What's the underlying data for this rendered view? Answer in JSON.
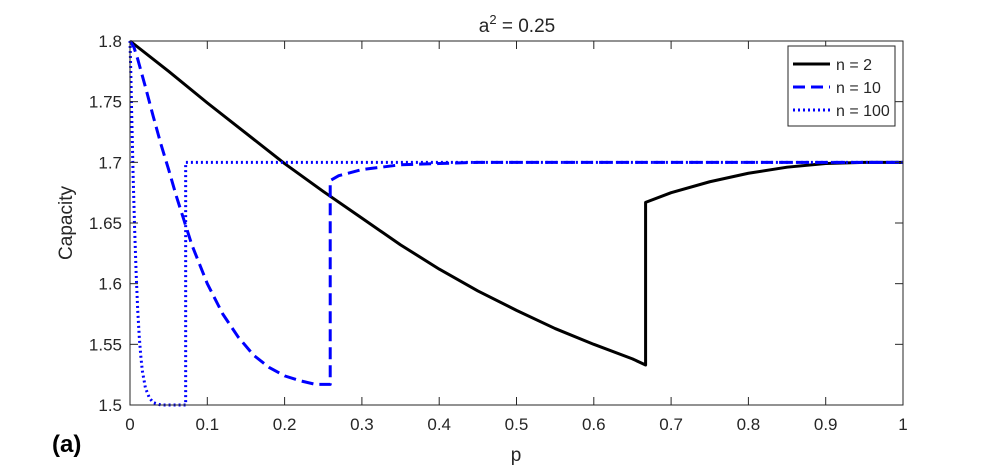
{
  "panel_label": "(a)",
  "chart_data": {
    "type": "line",
    "title_prefix": "a",
    "title_exponent": "2",
    "title_suffix": " = 0.25",
    "xlabel": "p",
    "ylabel": "Capacity",
    "xlim": [
      0,
      1
    ],
    "ylim": [
      1.5,
      1.8
    ],
    "xticks": [
      0,
      0.1,
      0.2,
      0.3,
      0.4,
      0.5,
      0.6,
      0.7,
      0.8,
      0.9,
      1
    ],
    "xtick_labels": [
      "0",
      "0.1",
      "0.2",
      "0.3",
      "0.4",
      "0.5",
      "0.6",
      "0.7",
      "0.8",
      "0.9",
      "1"
    ],
    "yticks": [
      1.5,
      1.55,
      1.6,
      1.65,
      1.7,
      1.75,
      1.8
    ],
    "ytick_labels": [
      "1.5",
      "1.55",
      "1.6",
      "1.65",
      "1.7",
      "1.75",
      "1.8"
    ],
    "grid": false,
    "legend_position": "top-right",
    "series": [
      {
        "name": "n = 2",
        "color": "#000000",
        "dash": "solid",
        "x": [
          0,
          0.05,
          0.1,
          0.15,
          0.2,
          0.25,
          0.3,
          0.35,
          0.4,
          0.45,
          0.5,
          0.55,
          0.6,
          0.65,
          0.667,
          0.667,
          0.7,
          0.75,
          0.8,
          0.85,
          0.9,
          0.95,
          1
        ],
        "y": [
          1.8,
          1.775,
          1.749,
          1.724,
          1.699,
          1.676,
          1.654,
          1.632,
          1.612,
          1.594,
          1.578,
          1.563,
          1.55,
          1.538,
          1.533,
          1.667,
          1.675,
          1.684,
          1.691,
          1.696,
          1.699,
          1.7,
          1.7
        ]
      },
      {
        "name": "n = 10",
        "color": "#0000ff",
        "dash": "dashed",
        "x": [
          0,
          0.005,
          0.01,
          0.02,
          0.03,
          0.04,
          0.05,
          0.06,
          0.07,
          0.08,
          0.1,
          0.12,
          0.14,
          0.16,
          0.18,
          0.2,
          0.22,
          0.24,
          0.259,
          0.259,
          0.27,
          0.3,
          0.35,
          0.4,
          0.45,
          0.5,
          0.6,
          0.8,
          1
        ],
        "y": [
          1.8,
          1.795,
          1.785,
          1.762,
          1.738,
          1.715,
          1.694,
          1.672,
          1.652,
          1.632,
          1.6,
          1.575,
          1.556,
          1.541,
          1.531,
          1.524,
          1.52,
          1.517,
          1.517,
          1.685,
          1.689,
          1.694,
          1.698,
          1.699,
          1.7,
          1.7,
          1.7,
          1.7,
          1.7
        ]
      },
      {
        "name": "n = 100",
        "color": "#0000ff",
        "dash": "dotted",
        "x": [
          0,
          0.001,
          0.002,
          0.004,
          0.006,
          0.008,
          0.01,
          0.012,
          0.014,
          0.016,
          0.02,
          0.025,
          0.03,
          0.04,
          0.05,
          0.06,
          0.072,
          0.072,
          0.08,
          0.1,
          0.2,
          0.4,
          0.6,
          0.8,
          1
        ],
        "y": [
          1.8,
          1.775,
          1.745,
          1.69,
          1.645,
          1.608,
          1.578,
          1.556,
          1.54,
          1.528,
          1.514,
          1.506,
          1.502,
          1.5,
          1.5,
          1.5,
          1.5,
          1.7,
          1.7,
          1.7,
          1.7,
          1.7,
          1.7,
          1.7,
          1.7
        ]
      }
    ]
  }
}
